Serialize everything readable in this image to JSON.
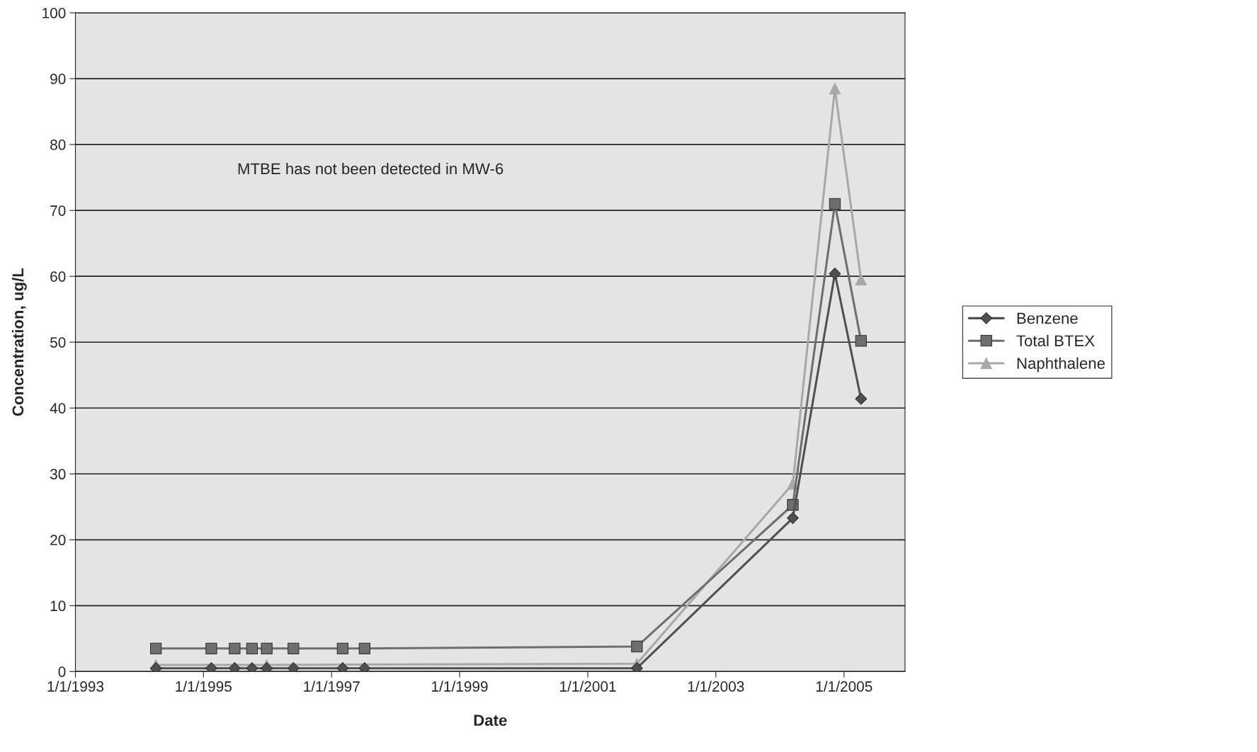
{
  "chart_data": {
    "type": "line",
    "xlabel": "Date",
    "ylabel": "Concentration, ug/L",
    "x": [
      "1994-04-05",
      "1995-02-15",
      "1995-06-28",
      "1995-10-05",
      "1995-12-28",
      "1996-05-28",
      "1997-03-05",
      "1997-07-08",
      "2001-10-08",
      "2004-03-15",
      "2004-11-10",
      "2005-04-08"
    ],
    "series": [
      {
        "name": "Benzene",
        "color": "#505050",
        "marker": "diamond",
        "values": [
          0.5,
          0.5,
          0.5,
          0.5,
          0.5,
          0.5,
          0.5,
          0.5,
          0.5,
          23.3,
          60.4,
          41.4
        ]
      },
      {
        "name": "Total BTEX",
        "color": "#6e6e6e",
        "marker": "square",
        "values": [
          3.5,
          3.5,
          3.5,
          3.5,
          3.5,
          3.5,
          3.5,
          3.5,
          3.8,
          25.3,
          71,
          50.2
        ]
      },
      {
        "name": "Naphthalene",
        "color": "#a8a8a8",
        "marker": "triangle",
        "x": [
          "1994-04-05",
          "1995-12-28",
          "2001-10-08",
          "2004-03-15",
          "2004-11-10",
          "2005-04-08"
        ],
        "values": [
          1.0,
          1.0,
          1.2,
          28.5,
          88.5,
          59.5
        ]
      }
    ],
    "xlim": [
      "1993-01-01",
      "2005-12-15"
    ],
    "xticks": [
      {
        "value": "1993-01-01",
        "label": "1/1/1993"
      },
      {
        "value": "1995-01-01",
        "label": "1/1/1995"
      },
      {
        "value": "1997-01-01",
        "label": "1/1/1997"
      },
      {
        "value": "1999-01-01",
        "label": "1/1/1999"
      },
      {
        "value": "2001-01-01",
        "label": "1/1/2001"
      },
      {
        "value": "2003-01-01",
        "label": "1/1/2003"
      },
      {
        "value": "2005-01-01",
        "label": "1/1/2005"
      }
    ],
    "ylim": [
      0,
      100
    ],
    "yticks": [
      0,
      10,
      20,
      30,
      40,
      50,
      60,
      70,
      80,
      90,
      100
    ],
    "grid": "y",
    "legend": "right",
    "line_style": "solid",
    "annotations": [
      "MTBE has not been detected in MW-6"
    ]
  }
}
